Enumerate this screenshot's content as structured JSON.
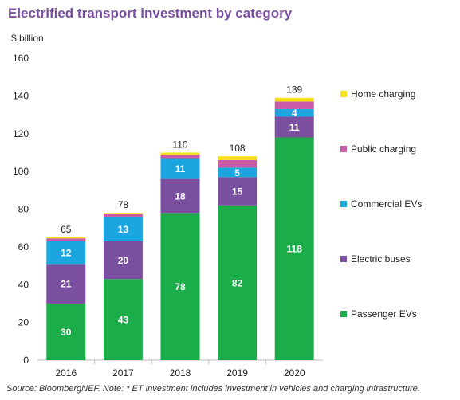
{
  "title": "Electrified transport investment by category",
  "source_note": "Source: BloombergNEF. Note: * ET investment includes investment in vehicles and charging infrastructure.",
  "chart_data": {
    "type": "bar",
    "stacked": true,
    "title": "Electrified transport investment by category",
    "ylabel": "$ billion",
    "xlabel": "",
    "categories": [
      "2016",
      "2017",
      "2018",
      "2019",
      "2020"
    ],
    "ylim": [
      0,
      160
    ],
    "yticks": [
      0,
      20,
      40,
      60,
      80,
      100,
      120,
      140,
      160
    ],
    "grid": false,
    "legend_position": "right",
    "totals": [
      65,
      78,
      110,
      108,
      139
    ],
    "series": [
      {
        "name": "Passenger EVs",
        "color": "#1aad4a",
        "values": [
          30,
          43,
          78,
          82,
          118
        ],
        "labels": [
          "30",
          "43",
          "78",
          "82",
          "118"
        ]
      },
      {
        "name": "Electric buses",
        "color": "#7a4fa0",
        "values": [
          21,
          20,
          18,
          15,
          11
        ],
        "labels": [
          "21",
          "20",
          "18",
          "15",
          "11"
        ]
      },
      {
        "name": "Commercial EVs",
        "color": "#1ba6e0",
        "values": [
          12,
          13,
          11,
          5,
          4
        ],
        "labels": [
          "12",
          "13",
          "11",
          "5",
          "4"
        ]
      },
      {
        "name": "Public charging",
        "color": "#c85aa9",
        "values": [
          1.5,
          1.5,
          2,
          4,
          4
        ],
        "labels": [
          "",
          "",
          "",
          "",
          ""
        ]
      },
      {
        "name": "Home charging",
        "color": "#f7e01b",
        "values": [
          0.5,
          0.5,
          1,
          2,
          2
        ],
        "labels": [
          "",
          "",
          "",
          "",
          ""
        ]
      }
    ]
  }
}
